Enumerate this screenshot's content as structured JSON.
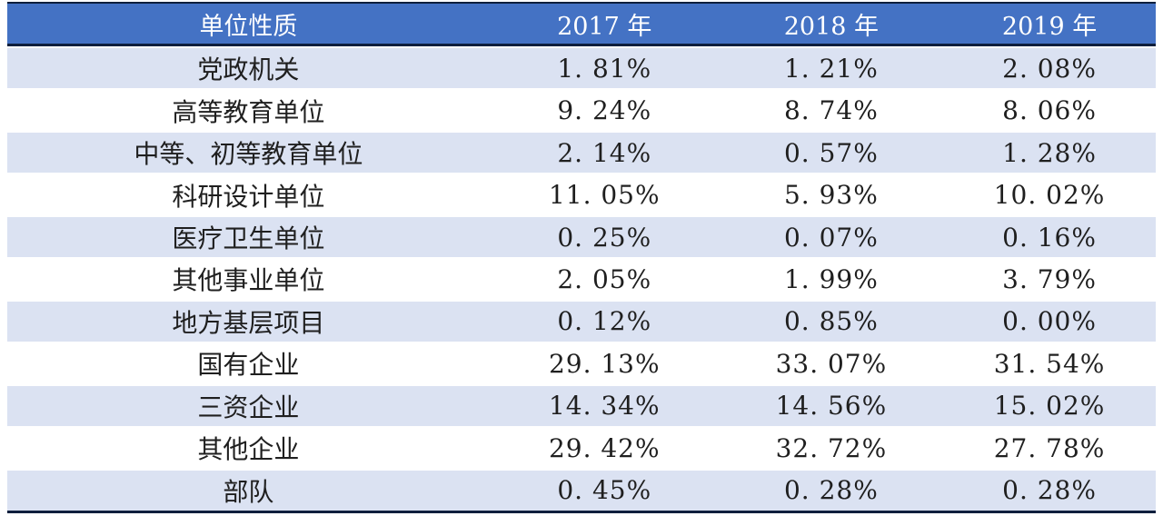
{
  "chart_data": {
    "type": "table",
    "title": "",
    "unit": "%",
    "columns": [
      "单位性质",
      "2017 年",
      "2018 年",
      "2019 年"
    ],
    "rows": [
      {
        "label": "党政机关",
        "display": [
          "1. 81%",
          "1. 21%",
          "2. 08%"
        ],
        "values_pct": [
          1.81,
          1.21,
          2.08
        ]
      },
      {
        "label": "高等教育单位",
        "display": [
          "9. 24%",
          "8. 74%",
          "8. 06%"
        ],
        "values_pct": [
          9.24,
          8.74,
          8.06
        ]
      },
      {
        "label": "中等、初等教育单位",
        "display": [
          "2. 14%",
          "0. 57%",
          "1. 28%"
        ],
        "values_pct": [
          2.14,
          0.57,
          1.28
        ]
      },
      {
        "label": "科研设计单位",
        "display": [
          "11. 05%",
          "5. 93%",
          "10. 02%"
        ],
        "values_pct": [
          11.05,
          5.93,
          10.02
        ]
      },
      {
        "label": "医疗卫生单位",
        "display": [
          "0. 25%",
          "0. 07%",
          "0. 16%"
        ],
        "values_pct": [
          0.25,
          0.07,
          0.16
        ]
      },
      {
        "label": "其他事业单位",
        "display": [
          "2. 05%",
          "1. 99%",
          "3. 79%"
        ],
        "values_pct": [
          2.05,
          1.99,
          3.79
        ]
      },
      {
        "label": "地方基层项目",
        "display": [
          "0. 12%",
          "0. 85%",
          "0. 00%"
        ],
        "values_pct": [
          0.12,
          0.85,
          0.0
        ]
      },
      {
        "label": "国有企业",
        "display": [
          "29. 13%",
          "33. 07%",
          "31. 54%"
        ],
        "values_pct": [
          29.13,
          33.07,
          31.54
        ]
      },
      {
        "label": "三资企业",
        "display": [
          "14. 34%",
          "14. 56%",
          "15. 02%"
        ],
        "values_pct": [
          14.34,
          14.56,
          15.02
        ]
      },
      {
        "label": "其他企业",
        "display": [
          "29. 42%",
          "32. 72%",
          "27. 78%"
        ],
        "values_pct": [
          29.42,
          32.72,
          27.78
        ]
      },
      {
        "label": "部队",
        "display": [
          "0. 45%",
          "0. 28%",
          "0. 28%"
        ],
        "values_pct": [
          0.45,
          0.28,
          0.28
        ]
      }
    ]
  },
  "colors": {
    "header_bg": "#4472C4",
    "header_text": "#FFFFFF",
    "stripe_bg": "#DBE2F2",
    "row_bg": "#FFFFFF",
    "rule_dark": "#0E1F3D",
    "body_text": "#1F1F1F"
  }
}
